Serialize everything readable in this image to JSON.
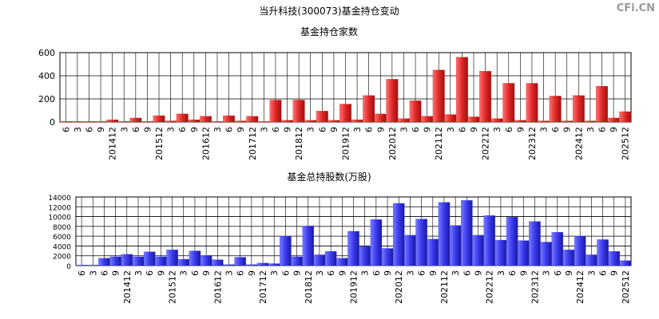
{
  "title": "当升科技(300073)基金持仓变动",
  "watermark": "CFi.CN",
  "chart_data": [
    {
      "type": "bar",
      "title": "基金持仓家数",
      "color": "#e02828",
      "categories": [
        "6",
        "3",
        "6",
        "9",
        "201412",
        "3",
        "6",
        "9",
        "201512",
        "3",
        "6",
        "9",
        "201612",
        "3",
        "6",
        "9",
        "201712",
        "3",
        "6",
        "9",
        "201812",
        "3",
        "6",
        "9",
        "201912",
        "3",
        "6",
        "9",
        "202012",
        "3",
        "6",
        "9",
        "202112",
        "3",
        "6",
        "9",
        "202212",
        "3",
        "6",
        "9",
        "202312",
        "3",
        "6",
        "9",
        "202412",
        "3",
        "6",
        "9",
        "202512"
      ],
      "values": [
        5,
        5,
        5,
        5,
        20,
        5,
        35,
        5,
        55,
        10,
        70,
        20,
        50,
        5,
        55,
        10,
        50,
        5,
        190,
        15,
        190,
        15,
        95,
        15,
        155,
        20,
        230,
        70,
        370,
        30,
        185,
        50,
        450,
        65,
        560,
        45,
        440,
        30,
        335,
        15,
        335,
        10,
        225,
        10,
        230,
        10,
        310,
        35,
        90
      ],
      "ylim": [
        0,
        600
      ],
      "yticks": [
        0,
        200,
        400,
        600
      ],
      "grid": true
    },
    {
      "type": "bar",
      "title": "基金总持股数(万股)",
      "color": "#3a3aee",
      "categories": [
        "6",
        "3",
        "6",
        "9",
        "201412",
        "3",
        "6",
        "9",
        "201512",
        "3",
        "6",
        "9",
        "201612",
        "3",
        "6",
        "9",
        "201712",
        "3",
        "6",
        "9",
        "201812",
        "3",
        "6",
        "9",
        "201912",
        "3",
        "6",
        "9",
        "202012",
        "3",
        "6",
        "9",
        "202112",
        "3",
        "6",
        "9",
        "202212",
        "3",
        "6",
        "9",
        "202312",
        "3",
        "6",
        "9",
        "202412",
        "3",
        "6",
        "9",
        "202512"
      ],
      "values": [
        100,
        100,
        1500,
        1800,
        2300,
        1800,
        2800,
        1800,
        3200,
        1300,
        3000,
        2100,
        1200,
        200,
        1700,
        200,
        500,
        400,
        6000,
        1800,
        8100,
        2200,
        2900,
        1500,
        7000,
        3900,
        9400,
        3500,
        12700,
        6200,
        9500,
        5400,
        12900,
        8200,
        13300,
        6200,
        10200,
        5200,
        9900,
        5100,
        9000,
        4800,
        6800,
        3200,
        6000,
        2200,
        5300,
        2900,
        1000
      ],
      "ylim": [
        0,
        14000
      ],
      "yticks": [
        0,
        2000,
        4000,
        6000,
        8000,
        10000,
        12000,
        14000
      ],
      "grid": true
    }
  ]
}
